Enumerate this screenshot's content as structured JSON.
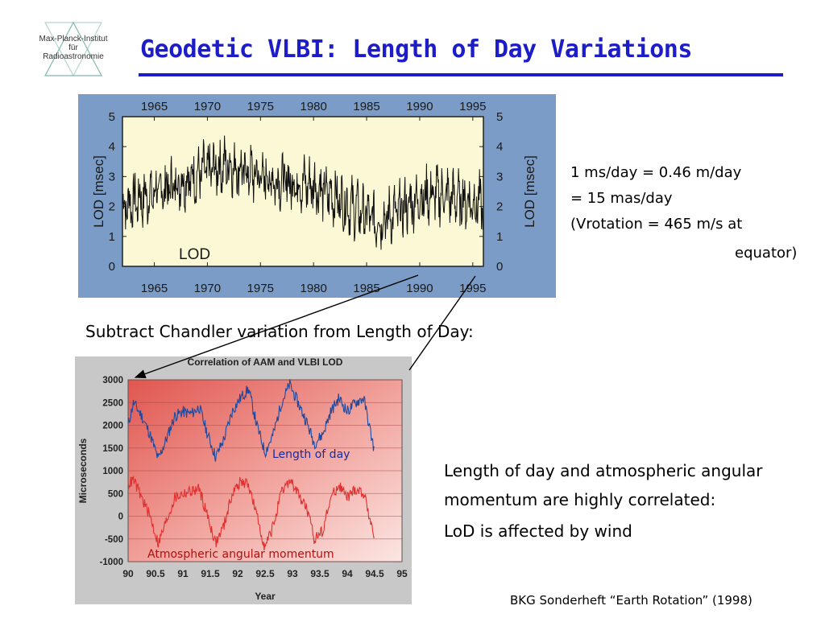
{
  "logo": {
    "line1": "Max-Planck-Institut",
    "line2": "für",
    "line3": "Radioastronomie"
  },
  "title": "Geodetic VLBI: Length of Day Variations",
  "conversion": {
    "line1": "1 ms/day = 0.46 m/day",
    "line2": "= 15 mas/day",
    "line3": "(Vrotation = 465 m/s at",
    "line4": "equator)"
  },
  "subtract_caption": "Subtract Chandler variation from Length of Day:",
  "conclusion": {
    "line1": "Length of day and atmospheric angular",
    "line2": "momentum are highly correlated:",
    "line3": "LoD is affected by wind"
  },
  "source": "BKG Sonderheft “Earth Rotation” (1998)",
  "colors": {
    "title": "#1c1cc8",
    "lod_panel_bg": "#7a9cc6",
    "lod_plot_bg": "#fbf8d6",
    "aam_line": "#e03030",
    "lod_line": "#1c4aa0"
  },
  "chart_data": [
    {
      "type": "line",
      "xticks": [
        "1965",
        "1970",
        "1975",
        "1980",
        "1985",
        "1990",
        "1995"
      ],
      "yticks": [
        "0",
        "1",
        "2",
        "3",
        "4",
        "5"
      ],
      "ylabel": "LOD [msec]",
      "ylim": [
        0,
        5
      ],
      "xlim": [
        1962,
        1996
      ],
      "series": [
        {
          "name": "LOD",
          "x": [
            1962,
            1964,
            1966,
            1968,
            1970,
            1972,
            1974,
            1976,
            1978,
            1980,
            1982,
            1984,
            1986,
            1988,
            1990,
            1992,
            1994,
            1996
          ],
          "values": [
            2.0,
            2.3,
            2.6,
            2.9,
            3.2,
            3.4,
            3.1,
            2.9,
            2.8,
            2.7,
            2.3,
            1.9,
            1.5,
            1.8,
            2.3,
            2.4,
            2.2,
            2.1
          ]
        }
      ]
    },
    {
      "type": "line",
      "title": "Correlation of AAM and VLBI LOD",
      "xlabel": "Year",
      "ylabel": "Microseconds",
      "xticks": [
        "90",
        "90.5",
        "91",
        "91.5",
        "92",
        "92.5",
        "93",
        "93.5",
        "94",
        "94.5",
        "95"
      ],
      "yticks": [
        "3000",
        "2500",
        "2000",
        "1500",
        "1000",
        "500",
        "0",
        "-500",
        "-1000"
      ],
      "xlim": [
        90,
        95
      ],
      "ylim": [
        -1000,
        3000
      ],
      "series": [
        {
          "name": "Length of day",
          "x": [
            90.0,
            90.1,
            90.25,
            90.4,
            90.55,
            90.7,
            90.85,
            91.0,
            91.15,
            91.3,
            91.45,
            91.6,
            91.75,
            91.9,
            92.05,
            92.2,
            92.35,
            92.5,
            92.65,
            92.8,
            92.95,
            93.1,
            93.25,
            93.4,
            93.55,
            93.7,
            93.85,
            94.0,
            94.15,
            94.3,
            94.45,
            94.5
          ],
          "values": [
            2000,
            2500,
            2200,
            1800,
            1250,
            1700,
            2200,
            2300,
            2250,
            2400,
            1800,
            1300,
            1700,
            2300,
            2600,
            2800,
            2000,
            1400,
            1800,
            2500,
            2900,
            2500,
            2100,
            1600,
            1800,
            2300,
            2600,
            2300,
            2500,
            2600,
            1700,
            1400
          ]
        },
        {
          "name": "Atmospheric angular momentum",
          "x": [
            90.0,
            90.1,
            90.25,
            90.4,
            90.55,
            90.7,
            90.85,
            91.0,
            91.15,
            91.3,
            91.45,
            91.6,
            91.75,
            91.9,
            92.05,
            92.2,
            92.35,
            92.5,
            92.65,
            92.8,
            92.95,
            93.1,
            93.25,
            93.4,
            93.55,
            93.7,
            93.85,
            94.0,
            94.15,
            94.3,
            94.45,
            94.5
          ],
          "values": [
            700,
            800,
            400,
            0,
            -600,
            -100,
            400,
            500,
            550,
            600,
            0,
            -600,
            -200,
            500,
            750,
            700,
            0,
            -700,
            -200,
            500,
            800,
            500,
            200,
            -500,
            -300,
            400,
            700,
            400,
            600,
            500,
            -200,
            -600
          ]
        }
      ]
    }
  ]
}
